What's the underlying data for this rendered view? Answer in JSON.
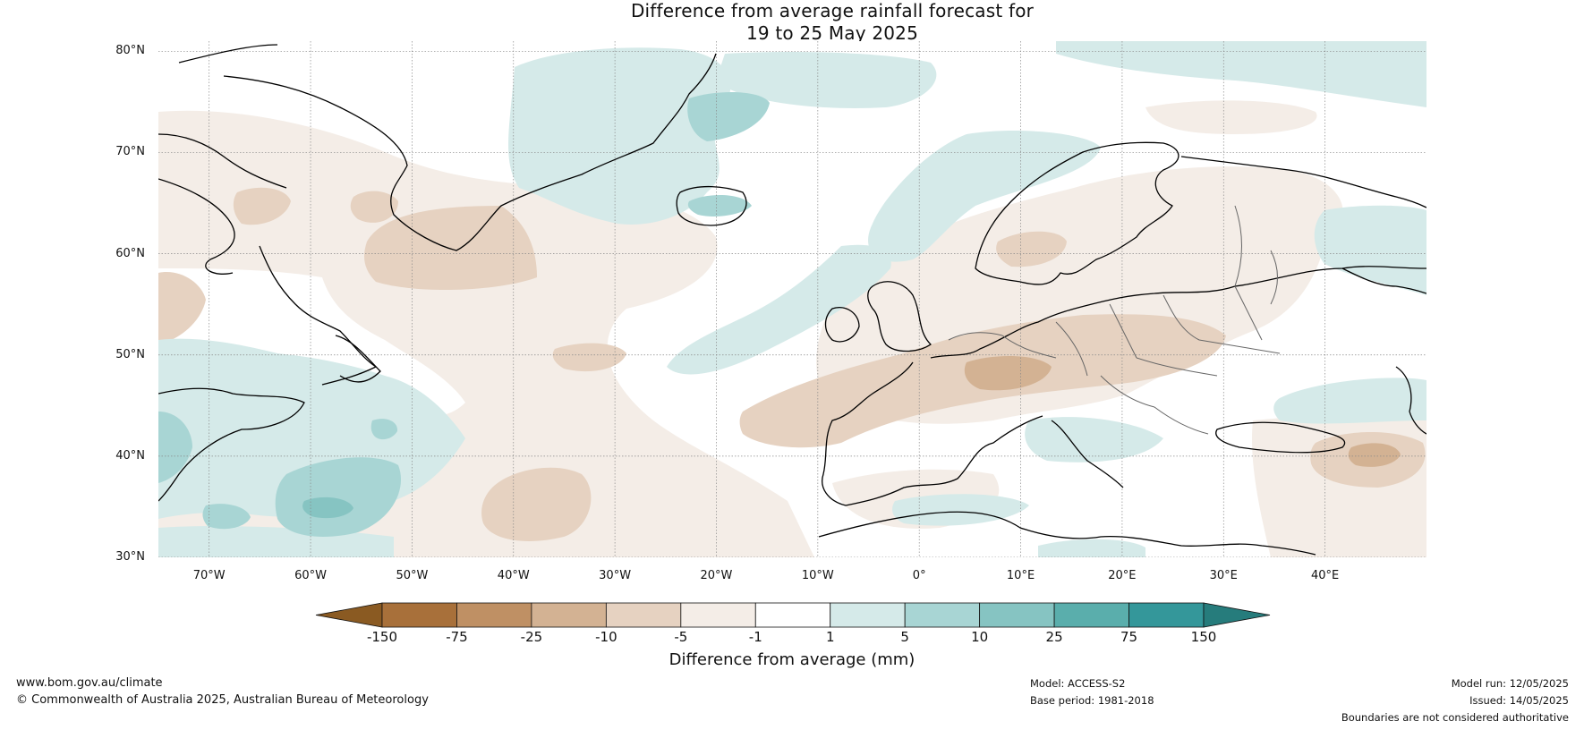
{
  "title": {
    "line1": "Difference from average rainfall forecast for",
    "line2": "19 to 25 May 2025"
  },
  "map": {
    "region": "North Atlantic and Europe",
    "lon_range": [
      -75,
      50
    ],
    "lat_range": [
      30,
      81
    ],
    "lat_labels": [
      "30°N",
      "40°N",
      "50°N",
      "60°N",
      "70°N",
      "80°N"
    ],
    "lon_labels": [
      "70°W",
      "60°W",
      "50°W",
      "40°W",
      "30°W",
      "20°W",
      "10°W",
      "0°",
      "10°E",
      "20°E",
      "30°E",
      "40°E"
    ]
  },
  "colorbar": {
    "title": "Difference from average (mm)",
    "ticks": [
      "-150",
      "-75",
      "-25",
      "-10",
      "-5",
      "-1",
      "1",
      "5",
      "10",
      "25",
      "75",
      "150"
    ],
    "colors": [
      "#8a5a22",
      "#a8703a",
      "#bf9064",
      "#d3b293",
      "#e6d2c1",
      "#f4ede7",
      "#ffffff",
      "#d5eae9",
      "#a8d5d4",
      "#86c4c2",
      "#5aaeac",
      "#34979a",
      "#267c7c"
    ]
  },
  "footer": {
    "website": "www.bom.gov.au/climate",
    "copyright": "© Commonwealth of Australia 2025, Australian Bureau of Meteorology",
    "model": "Model: ACCESS-S2",
    "base_period": "Base period: 1981-2018",
    "model_run": "Model run: 12/05/2025",
    "issued": "Issued: 14/05/2025",
    "disclaimer": "Boundaries are not considered authoritative"
  }
}
